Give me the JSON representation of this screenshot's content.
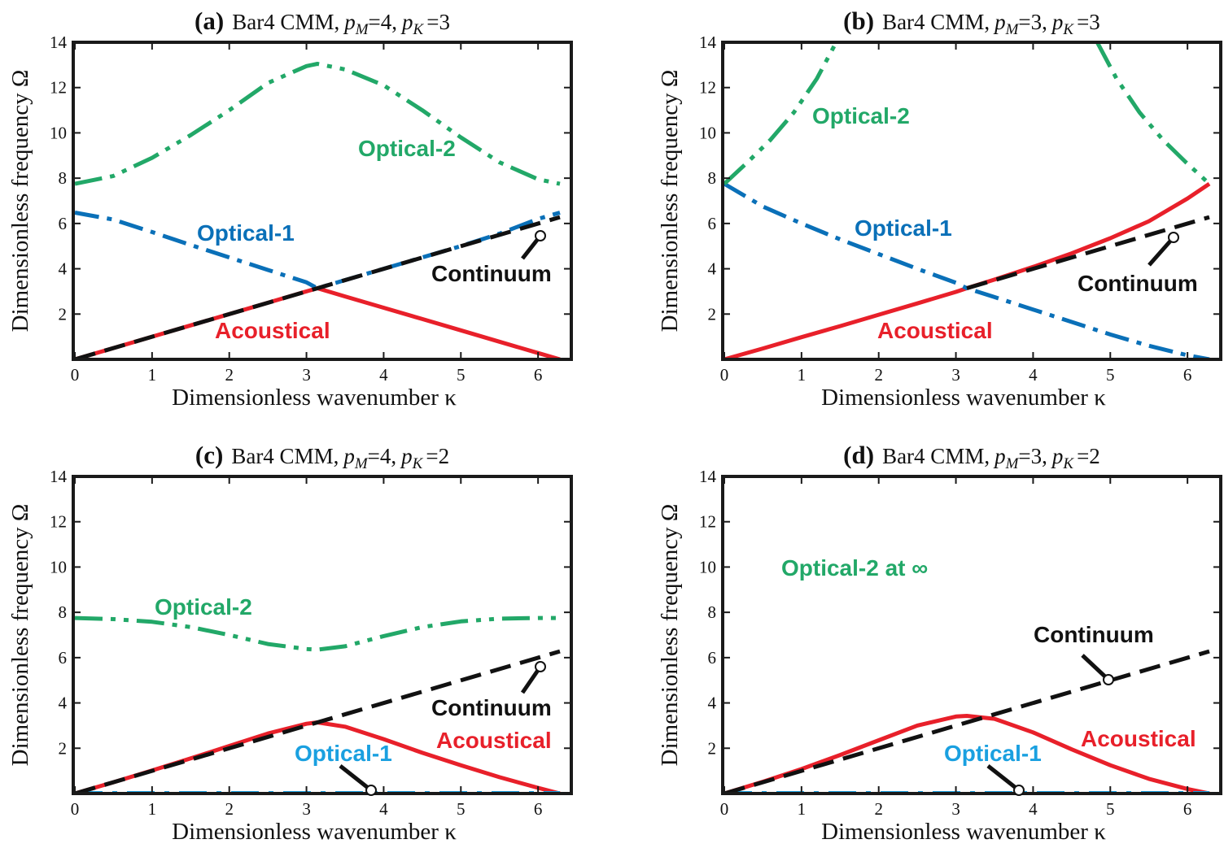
{
  "colors": {
    "acoustical": "#e8202a",
    "optical1": "#0a70b8",
    "optical1_flat": "#1aa0e0",
    "optical2": "#22a868",
    "continuum": "#111111",
    "frame": "#1a1a1a"
  },
  "chart_data": [
    {
      "type": "line",
      "panel_letter": "(a)",
      "title_main": "Bar4 CMM,",
      "title_pm_var": "p",
      "title_pm_sub": "M",
      "title_pm_val": "=4,",
      "title_pk_var": "p",
      "title_pk_sub": "K",
      "title_pk_val": "=3",
      "xlabel": "Dimensionless wavenumber κ",
      "ylabel": "Dimensionless frequency Ω",
      "xlim": [
        0,
        6.2832
      ],
      "ylim": [
        0,
        14
      ],
      "xticks": [
        "0",
        "1",
        "2",
        "3",
        "4",
        "5",
        "6"
      ],
      "yticks": [
        "2",
        "4",
        "6",
        "8",
        "10",
        "12",
        "14"
      ],
      "series_labels": {
        "acoustical": "Acoustical",
        "optical1": "Optical-1",
        "optical2": "Optical-2",
        "continuum": "Continuum"
      },
      "series": [
        {
          "name": "Acoustical",
          "x": [
            0,
            0.5,
            1,
            1.5,
            2,
            2.5,
            3,
            3.1416,
            3.5,
            4,
            4.5,
            5,
            5.5,
            6,
            6.2832
          ],
          "y": [
            0,
            0.5,
            1.0,
            1.5,
            2.0,
            2.5,
            3.0,
            3.14,
            2.78,
            2.28,
            1.78,
            1.28,
            0.78,
            0.28,
            0
          ]
        },
        {
          "name": "Optical-1",
          "x": [
            0,
            0.5,
            1,
            1.5,
            2,
            2.5,
            3,
            3.1416,
            3.5,
            4,
            4.5,
            5,
            5.5,
            6,
            6.2832
          ],
          "y": [
            6.48,
            6.17,
            5.62,
            5.05,
            4.5,
            3.95,
            3.4,
            3.14,
            3.5,
            4.0,
            4.5,
            5.0,
            5.55,
            6.2,
            6.48
          ]
        },
        {
          "name": "Optical-2",
          "x": [
            0,
            0.5,
            1,
            1.5,
            2,
            2.5,
            3,
            3.1416,
            3.5,
            4,
            4.5,
            5,
            5.5,
            6,
            6.2832
          ],
          "y": [
            7.75,
            8.1,
            8.9,
            9.9,
            11.0,
            12.2,
            12.95,
            13.05,
            12.8,
            12.1,
            11.0,
            9.8,
            8.7,
            7.95,
            7.75
          ]
        },
        {
          "name": "Continuum",
          "x": [
            0,
            6.2832
          ],
          "y": [
            0,
            6.28
          ]
        }
      ]
    },
    {
      "type": "line",
      "panel_letter": "(b)",
      "title_main": "Bar4 CMM,",
      "title_pm_var": "p",
      "title_pm_sub": "M",
      "title_pm_val": "=3,",
      "title_pk_var": "p",
      "title_pk_sub": "K",
      "title_pk_val": "=3",
      "xlabel": "Dimensionless wavenumber κ",
      "ylabel": "Dimensionless frequency Ω",
      "xlim": [
        0,
        6.2832
      ],
      "ylim": [
        0,
        14
      ],
      "xticks": [
        "0",
        "1",
        "2",
        "3",
        "4",
        "5",
        "6"
      ],
      "yticks": [
        "2",
        "4",
        "6",
        "8",
        "10",
        "12",
        "14"
      ],
      "series_labels": {
        "acoustical": "Acoustical",
        "optical1": "Optical-1",
        "optical2": "Optical-2",
        "continuum": "Continuum"
      },
      "series": [
        {
          "name": "Acoustical",
          "x": [
            0,
            0.5,
            1,
            1.5,
            2,
            2.5,
            3,
            3.1416,
            3.5,
            4,
            4.5,
            5,
            5.5,
            6,
            6.2832
          ],
          "y": [
            0,
            0.48,
            0.98,
            1.47,
            1.97,
            2.47,
            2.98,
            3.14,
            3.52,
            4.08,
            4.68,
            5.35,
            6.1,
            7.1,
            7.75
          ]
        },
        {
          "name": "Optical-1",
          "x": [
            0,
            0.5,
            1,
            1.5,
            2,
            2.5,
            3,
            3.1416,
            3.5,
            4,
            4.5,
            5,
            5.5,
            6,
            6.2832
          ],
          "y": [
            7.75,
            6.75,
            6.0,
            5.3,
            4.65,
            4.0,
            3.38,
            3.14,
            2.75,
            2.2,
            1.65,
            1.1,
            0.6,
            0.18,
            0
          ]
        },
        {
          "name": "Optical-2 (left branch)",
          "x": [
            0,
            0.3,
            0.6,
            0.9,
            1.2,
            1.45
          ],
          "y": [
            7.75,
            8.7,
            9.7,
            10.9,
            12.4,
            14
          ]
        },
        {
          "name": "Optical-2 (right branch)",
          "x": [
            4.83,
            5.08,
            5.38,
            5.68,
            5.98,
            6.2832
          ],
          "y": [
            14,
            12.4,
            10.9,
            9.7,
            8.7,
            7.75
          ]
        },
        {
          "name": "Continuum",
          "x": [
            3.1416,
            6.2832
          ],
          "y": [
            3.14,
            6.28
          ]
        }
      ]
    },
    {
      "type": "line",
      "panel_letter": "(c)",
      "title_main": "Bar4 CMM,",
      "title_pm_var": "p",
      "title_pm_sub": "M",
      "title_pm_val": "=4,",
      "title_pk_var": "p",
      "title_pk_sub": "K",
      "title_pk_val": "=2",
      "xlabel": "Dimensionless wavenumber κ",
      "ylabel": "Dimensionless frequency Ω",
      "xlim": [
        0,
        6.2832
      ],
      "ylim": [
        0,
        14
      ],
      "xticks": [
        "0",
        "1",
        "2",
        "3",
        "4",
        "5",
        "6"
      ],
      "yticks": [
        "2",
        "4",
        "6",
        "8",
        "10",
        "12",
        "14"
      ],
      "series_labels": {
        "acoustical": "Acoustical",
        "optical1": "Optical-1",
        "optical2": "Optical-2",
        "continuum": "Continuum"
      },
      "series": [
        {
          "name": "Acoustical",
          "x": [
            0,
            0.5,
            1,
            1.5,
            2,
            2.5,
            3,
            3.1416,
            3.5,
            4,
            4.5,
            5,
            5.5,
            6,
            6.2832
          ],
          "y": [
            0,
            0.5,
            1.02,
            1.55,
            2.1,
            2.65,
            3.08,
            3.14,
            2.95,
            2.4,
            1.8,
            1.25,
            0.72,
            0.25,
            0
          ]
        },
        {
          "name": "Optical-1",
          "x": [
            0,
            6.2832
          ],
          "y": [
            0,
            0
          ]
        },
        {
          "name": "Optical-2",
          "x": [
            0,
            0.5,
            1,
            1.5,
            2,
            2.5,
            3,
            3.1416,
            3.5,
            4,
            4.5,
            5,
            5.5,
            6,
            6.2832
          ],
          "y": [
            7.75,
            7.7,
            7.58,
            7.35,
            7.0,
            6.6,
            6.38,
            6.35,
            6.5,
            6.95,
            7.35,
            7.6,
            7.72,
            7.75,
            7.75
          ]
        },
        {
          "name": "Continuum",
          "x": [
            0,
            6.2832
          ],
          "y": [
            0,
            6.28
          ]
        }
      ]
    },
    {
      "type": "line",
      "panel_letter": "(d)",
      "title_main": "Bar4 CMM,",
      "title_pm_var": "p",
      "title_pm_sub": "M",
      "title_pm_val": "=3,",
      "title_pk_var": "p",
      "title_pk_sub": "K",
      "title_pk_val": "=2",
      "xlabel": "Dimensionless wavenumber κ",
      "ylabel": "Dimensionless frequency Ω",
      "xlim": [
        0,
        6.2832
      ],
      "ylim": [
        0,
        14
      ],
      "xticks": [
        "0",
        "1",
        "2",
        "3",
        "4",
        "5",
        "6"
      ],
      "yticks": [
        "2",
        "4",
        "6",
        "8",
        "10",
        "12",
        "14"
      ],
      "series_labels": {
        "acoustical": "Acoustical",
        "optical1": "Optical-1",
        "optical2": "Optical-2 at ∞",
        "continuum": "Continuum"
      },
      "series": [
        {
          "name": "Acoustical",
          "x": [
            0,
            0.5,
            1,
            1.5,
            2,
            2.5,
            3,
            3.1416,
            3.5,
            4,
            4.5,
            5,
            5.5,
            6,
            6.2832
          ],
          "y": [
            0,
            0.52,
            1.08,
            1.7,
            2.35,
            3.0,
            3.4,
            3.43,
            3.3,
            2.7,
            1.95,
            1.25,
            0.65,
            0.2,
            0
          ]
        },
        {
          "name": "Optical-1",
          "x": [
            0,
            6.2832
          ],
          "y": [
            0,
            0
          ]
        },
        {
          "name": "Continuum",
          "x": [
            0,
            6.2832
          ],
          "y": [
            0,
            6.28
          ]
        }
      ]
    }
  ]
}
